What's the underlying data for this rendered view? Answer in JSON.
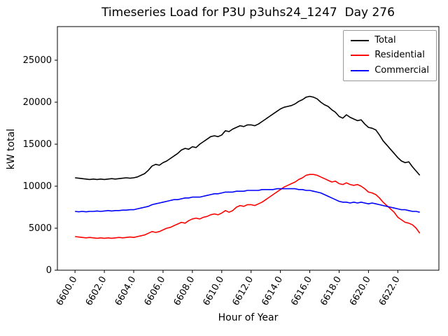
{
  "chart_data": {
    "type": "line",
    "title": "Timeseries Load for P3U p3uhs24_1247  Day 276",
    "xlabel": "Hour of Year",
    "ylabel": "kW total",
    "grid": false,
    "legend_position": "upper right",
    "xlim": [
      6598.8,
      6624.8
    ],
    "ylim": [
      0,
      29000
    ],
    "xtick_values": [
      6600,
      6602,
      6604,
      6606,
      6608,
      6610,
      6612,
      6614,
      6616,
      6618,
      6620,
      6622
    ],
    "xtick_labels": [
      "6600.0",
      "6602.0",
      "6604.0",
      "6606.0",
      "6608.0",
      "6610.0",
      "6612.0",
      "6614.0",
      "6616.0",
      "6618.0",
      "6620.0",
      "6622.0"
    ],
    "ytick_values": [
      0,
      5000,
      10000,
      15000,
      20000,
      25000
    ],
    "ytick_labels": [
      "0",
      "5000",
      "10000",
      "15000",
      "20000",
      "25000"
    ],
    "x_start": 6600.0,
    "x_step": 0.25,
    "series": [
      {
        "name": "Total",
        "color": "#000000",
        "values": [
          11000,
          10950,
          10900,
          10850,
          10800,
          10850,
          10800,
          10850,
          10800,
          10850,
          10900,
          10850,
          10900,
          10950,
          11000,
          10950,
          11000,
          11100,
          11300,
          11500,
          11900,
          12400,
          12600,
          12500,
          12800,
          13000,
          13300,
          13600,
          13900,
          14300,
          14500,
          14400,
          14700,
          14600,
          15000,
          15300,
          15600,
          15900,
          16000,
          15900,
          16100,
          16600,
          16500,
          16800,
          17000,
          17200,
          17100,
          17300,
          17300,
          17200,
          17400,
          17700,
          18000,
          18300,
          18600,
          18900,
          19200,
          19400,
          19500,
          19600,
          19800,
          20100,
          20300,
          20600,
          20700,
          20600,
          20400,
          20000,
          19700,
          19500,
          19100,
          18800,
          18300,
          18100,
          18500,
          18200,
          18000,
          17800,
          17900,
          17400,
          17000,
          16900,
          16700,
          16100,
          15400,
          14900,
          14400,
          13900,
          13400,
          13000,
          12800,
          12900,
          12300,
          11800,
          11300
        ]
      },
      {
        "name": "Residential",
        "color": "#ff0000",
        "values": [
          4000,
          3950,
          3900,
          3850,
          3900,
          3850,
          3800,
          3850,
          3800,
          3850,
          3800,
          3850,
          3900,
          3850,
          3900,
          3950,
          3900,
          4000,
          4100,
          4200,
          4400,
          4600,
          4500,
          4600,
          4800,
          5000,
          5100,
          5300,
          5500,
          5700,
          5600,
          5900,
          6100,
          6200,
          6100,
          6300,
          6400,
          6600,
          6700,
          6600,
          6800,
          7100,
          6900,
          7100,
          7500,
          7700,
          7600,
          7800,
          7800,
          7700,
          7900,
          8100,
          8400,
          8700,
          9000,
          9300,
          9600,
          9900,
          10100,
          10300,
          10500,
          10800,
          11000,
          11300,
          11400,
          11400,
          11300,
          11100,
          10900,
          10700,
          10500,
          10600,
          10300,
          10200,
          10400,
          10200,
          10100,
          10200,
          10000,
          9700,
          9300,
          9200,
          9000,
          8600,
          8100,
          7700,
          7300,
          6900,
          6300,
          6000,
          5700,
          5600,
          5400,
          5000,
          4400
        ]
      },
      {
        "name": "Commercial",
        "color": "#0000ff",
        "values": [
          7000,
          6950,
          7000,
          6950,
          7000,
          7000,
          7050,
          7000,
          7050,
          7100,
          7050,
          7100,
          7100,
          7150,
          7150,
          7200,
          7200,
          7300,
          7400,
          7500,
          7600,
          7800,
          7900,
          8000,
          8100,
          8200,
          8300,
          8400,
          8400,
          8500,
          8600,
          8600,
          8700,
          8700,
          8700,
          8800,
          8900,
          9000,
          9100,
          9100,
          9200,
          9300,
          9300,
          9300,
          9400,
          9400,
          9400,
          9500,
          9500,
          9500,
          9500,
          9600,
          9600,
          9600,
          9600,
          9700,
          9700,
          9700,
          9700,
          9700,
          9700,
          9600,
          9600,
          9500,
          9500,
          9400,
          9300,
          9200,
          9000,
          8800,
          8600,
          8400,
          8200,
          8100,
          8100,
          8000,
          8100,
          8000,
          8100,
          8000,
          7900,
          8000,
          7900,
          7800,
          7700,
          7600,
          7500,
          7400,
          7300,
          7200,
          7200,
          7100,
          7000,
          7000,
          6900
        ]
      }
    ]
  }
}
